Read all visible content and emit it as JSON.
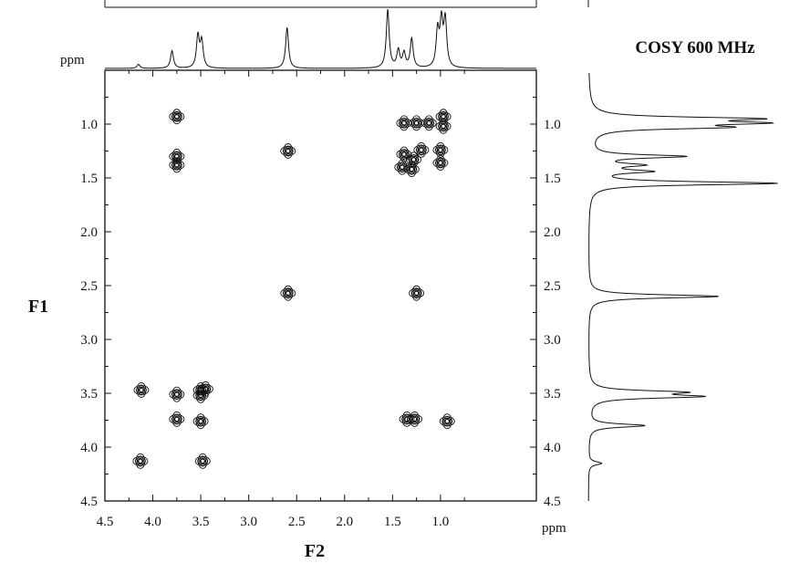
{
  "chart_data": {
    "type": "contour",
    "title": "COSY 600 MHz",
    "xlabel": "F2",
    "ylabel": "F1",
    "unit_label": "ppm",
    "projection_unit_label": "ppm",
    "x_axis": {
      "range": [
        4.5,
        0.0
      ],
      "ticks": [
        "4.5",
        "4.0",
        "3.5",
        "3.0",
        "2.5",
        "2.0",
        "1.5",
        "1.0"
      ],
      "tick_values": [
        4.5,
        4.0,
        3.5,
        3.0,
        2.5,
        2.0,
        1.5,
        1.0
      ]
    },
    "y_axis": {
      "range": [
        0.5,
        4.5
      ],
      "ticks": [
        "1.0",
        "1.5",
        "2.0",
        "2.5",
        "3.0",
        "3.5",
        "4.0",
        "4.5"
      ],
      "tick_values": [
        1.0,
        1.5,
        2.0,
        2.5,
        3.0,
        3.5,
        4.0,
        4.5
      ]
    },
    "cross_peaks": [
      {
        "f2": 3.75,
        "f1": 0.93
      },
      {
        "f2": 3.75,
        "f1": 1.3
      },
      {
        "f2": 3.75,
        "f1": 1.38
      },
      {
        "f2": 2.59,
        "f1": 1.25
      },
      {
        "f2": 1.38,
        "f1": 0.99
      },
      {
        "f2": 1.25,
        "f1": 0.99
      },
      {
        "f2": 1.12,
        "f1": 0.99
      },
      {
        "f2": 0.97,
        "f1": 0.93
      },
      {
        "f2": 0.97,
        "f1": 1.02
      },
      {
        "f2": 1.38,
        "f1": 1.28
      },
      {
        "f2": 1.28,
        "f1": 1.33
      },
      {
        "f2": 1.2,
        "f1": 1.24
      },
      {
        "f2": 1.4,
        "f1": 1.4
      },
      {
        "f2": 1.3,
        "f1": 1.42
      },
      {
        "f2": 1.0,
        "f1": 1.24
      },
      {
        "f2": 1.0,
        "f1": 1.36
      },
      {
        "f2": 2.59,
        "f1": 2.57
      },
      {
        "f2": 1.25,
        "f1": 2.57
      },
      {
        "f2": 4.12,
        "f1": 3.47
      },
      {
        "f2": 3.75,
        "f1": 3.51
      },
      {
        "f2": 3.5,
        "f1": 3.47
      },
      {
        "f2": 3.45,
        "f1": 3.46
      },
      {
        "f2": 3.5,
        "f1": 3.52
      },
      {
        "f2": 3.75,
        "f1": 3.74
      },
      {
        "f2": 3.5,
        "f1": 3.76
      },
      {
        "f2": 1.35,
        "f1": 3.74
      },
      {
        "f2": 1.27,
        "f1": 3.74
      },
      {
        "f2": 0.93,
        "f1": 3.76
      },
      {
        "f2": 4.13,
        "f1": 4.13
      },
      {
        "f2": 3.48,
        "f1": 4.13
      }
    ],
    "projection_peaks_1d": [
      {
        "ppm": 4.15,
        "height": 0.07
      },
      {
        "ppm": 3.8,
        "height": 0.3
      },
      {
        "ppm": 3.53,
        "height": 0.55
      },
      {
        "ppm": 3.49,
        "height": 0.45
      },
      {
        "ppm": 2.6,
        "height": 0.7
      },
      {
        "ppm": 1.55,
        "height": 1.0
      },
      {
        "ppm": 1.44,
        "height": 0.3
      },
      {
        "ppm": 1.38,
        "height": 0.25
      },
      {
        "ppm": 1.3,
        "height": 0.5
      },
      {
        "ppm": 1.03,
        "height": 0.62
      },
      {
        "ppm": 0.99,
        "height": 0.75
      },
      {
        "ppm": 0.95,
        "height": 0.8
      }
    ]
  }
}
